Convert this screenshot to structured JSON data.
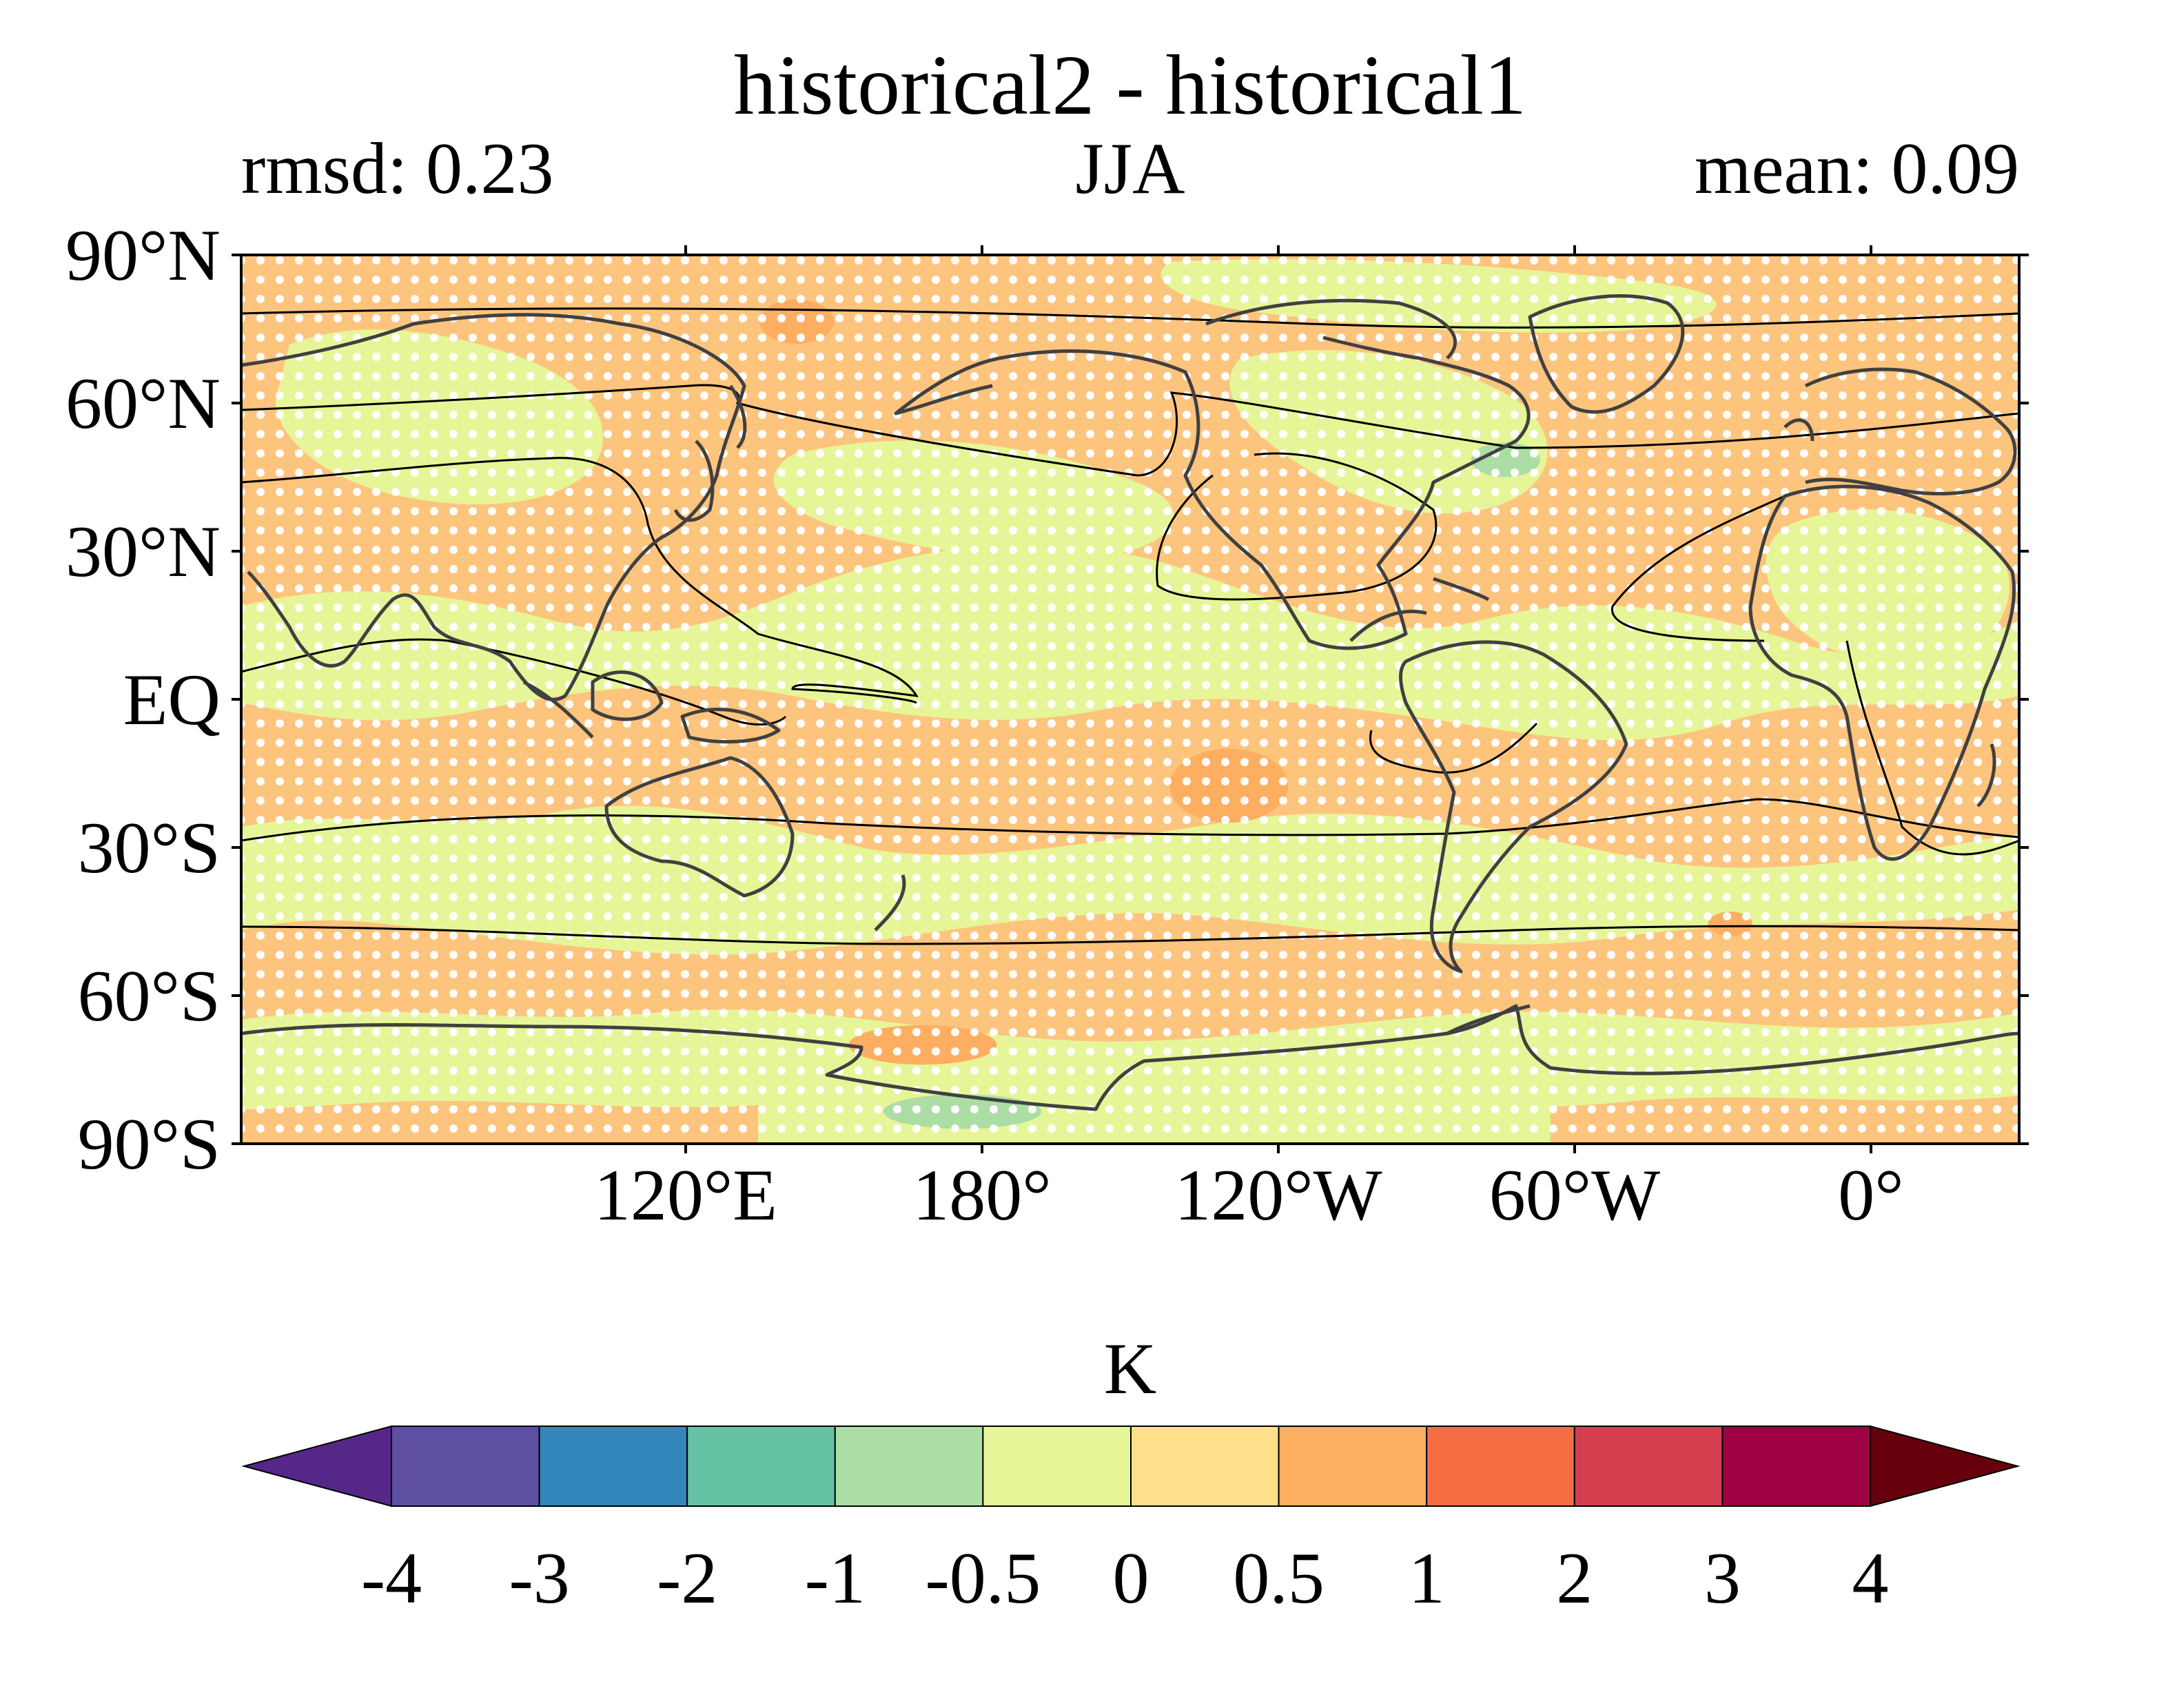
{
  "chart_data": {
    "type": "heatmap",
    "title": "historical2 - historical1",
    "subtitle_left": "rmsd: 0.23",
    "subtitle_center": "JJA",
    "subtitle_right": "mean: 0.09",
    "map": {
      "projection": "plate-carree",
      "lon_range": [
        30,
        390
      ],
      "lat_range": [
        -90,
        90
      ],
      "central_longitude": "180°",
      "lat_ticks": [
        {
          "lat": 90,
          "label": "90°N"
        },
        {
          "lat": 60,
          "label": "60°N"
        },
        {
          "lat": 30,
          "label": "30°N"
        },
        {
          "lat": 0,
          "label": "EQ"
        },
        {
          "lat": -30,
          "label": "30°S"
        },
        {
          "lat": -60,
          "label": "60°S"
        },
        {
          "lat": -90,
          "label": "90°S"
        }
      ],
      "lon_ticks": [
        {
          "lon": 120,
          "label": "120°E"
        },
        {
          "lon": 180,
          "label": "180°"
        },
        {
          "lon": 240,
          "label": "120°W"
        },
        {
          "lon": 300,
          "label": "60°W"
        },
        {
          "lon": 360,
          "label": "0°"
        }
      ],
      "stippling": "white dots mark regions where the difference is significant",
      "contour_lines": "black climatology contours"
    },
    "anomaly_patches": [
      {
        "name": "arctic-siberia-warm",
        "lon_range": [
          135,
          150
        ],
        "lat_range": [
          72,
          81
        ],
        "level": "0.5 to 1"
      },
      {
        "name": "central-pacific-warm",
        "lon_range": [
          218,
          242
        ],
        "lat_range": [
          -25,
          -10
        ],
        "level": "0.5 to 1"
      },
      {
        "name": "southern-ocean-warm",
        "lon_range": [
          153,
          183
        ],
        "lat_range": [
          -74,
          -66
        ],
        "level": "0.5 to 1"
      },
      {
        "name": "europe-warm",
        "lon_range": [
          14,
          30
        ],
        "lat_range": [
          47,
          62
        ],
        "level": "0.5 to 1"
      },
      {
        "name": "south-atlantic-warm",
        "lon_range": [
          327,
          336
        ],
        "lat_range": [
          -48,
          -43
        ],
        "level": "0.5 to 1"
      },
      {
        "name": "antarctic-cool",
        "lon_range": [
          160,
          192
        ],
        "lat_range": [
          -87,
          -80
        ],
        "level": "-1 to -0.5"
      },
      {
        "name": "hudson-cool",
        "lon_range": [
          279,
          293
        ],
        "lat_range": [
          45,
          52
        ],
        "level": "-1 to -0.5"
      }
    ],
    "colorbar": {
      "label": "K",
      "tick_labels": [
        "-4",
        "-3",
        "-2",
        "-1",
        "-0.5",
        "0",
        "0.5",
        "1",
        "2",
        "3",
        "4"
      ],
      "boundaries": [
        -4,
        -3,
        -2,
        -1,
        -0.5,
        0,
        0.5,
        1,
        2,
        3,
        4
      ],
      "colors": [
        "#5e4fa2",
        "#3288bd",
        "#66c2a5",
        "#abdda4",
        "#e6f598",
        "#fee08b",
        "#fdae61",
        "#f46d43",
        "#d53e4f",
        "#9e0142"
      ],
      "extend_min_color": "#542788",
      "extend_max_color": "#67000d",
      "extend": "both"
    }
  }
}
